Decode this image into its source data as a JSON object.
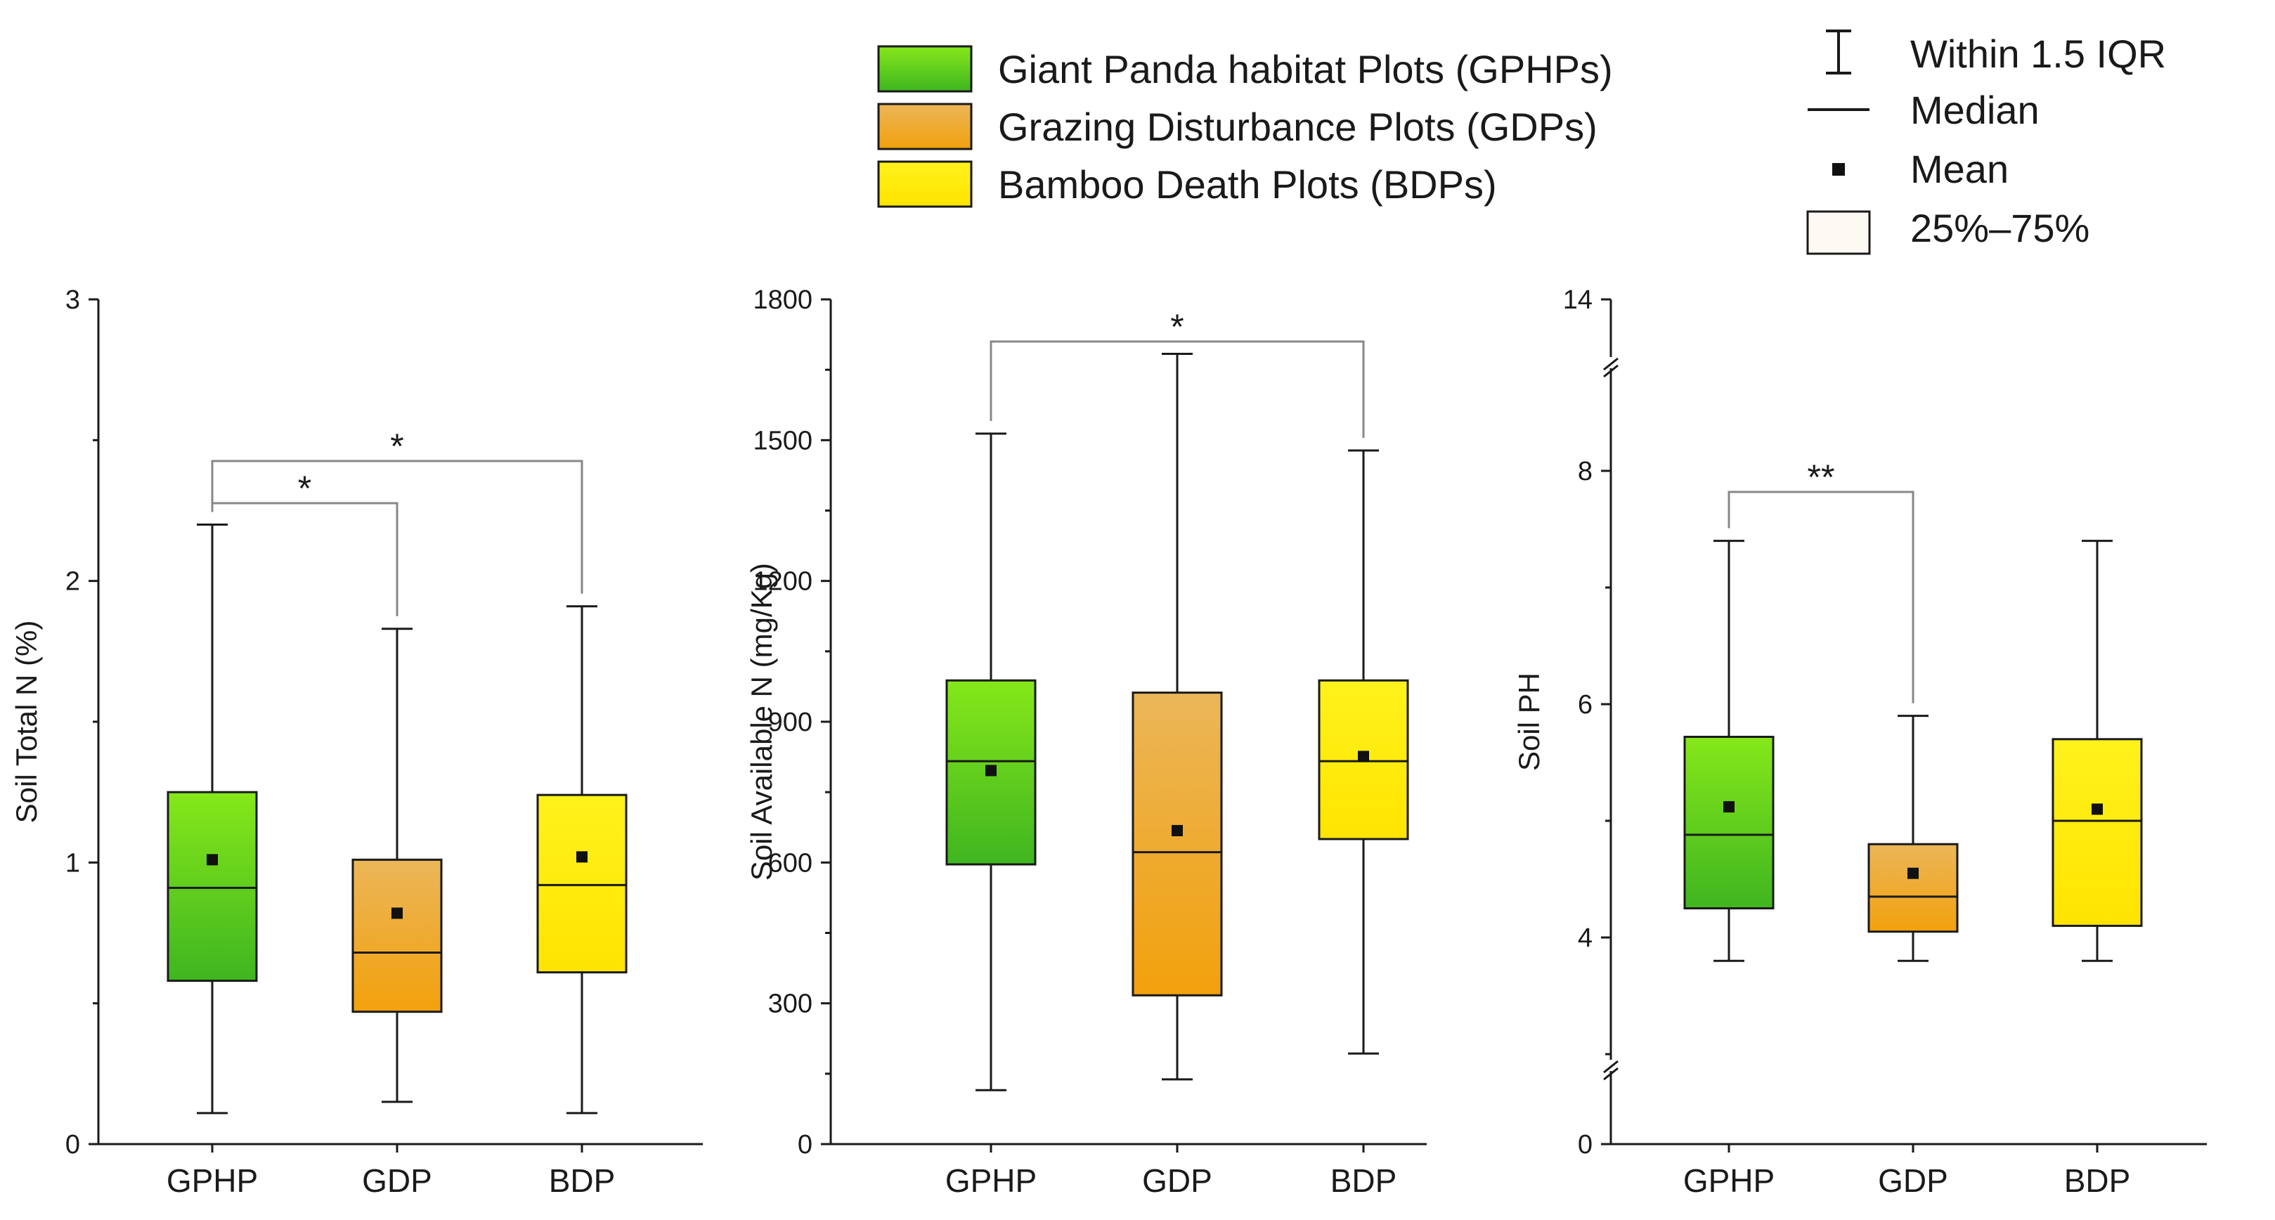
{
  "colors": {
    "GPHP": [
      "#86e81a",
      "#3fb520"
    ],
    "GDP": [
      "#ebb659",
      "#f2a10c"
    ],
    "BDP": [
      "#fff21c",
      "#ffe400"
    ],
    "axis": "#1a1a1a",
    "bracket": "#888888"
  },
  "legend_groups": {
    "items": [
      {
        "key": "GPHP",
        "label": "Giant Panda habitat Plots (GPHPs)"
      },
      {
        "key": "GDP",
        "label": "Grazing Disturbance Plots (GDPs)"
      },
      {
        "key": "BDP",
        "label": "Bamboo Death Plots (BDPs)"
      }
    ]
  },
  "legend_symbols": {
    "items": [
      {
        "symbol": "whisker-icon",
        "label": "Within 1.5 IQR"
      },
      {
        "symbol": "median-line-icon",
        "label": "Median"
      },
      {
        "symbol": "mean-dot-icon",
        "label": "Mean"
      },
      {
        "symbol": "iqr-box-icon",
        "label": "25%–75%"
      }
    ]
  },
  "chart_data": [
    {
      "type": "box",
      "ylabel": "Soil Total N (%)",
      "categories": [
        "GPHP",
        "GDP",
        "BDP"
      ],
      "ylim": [
        0,
        3
      ],
      "yticks": [
        0,
        1,
        2,
        3
      ],
      "yticks_minor": [
        0.5,
        1.5,
        2.5
      ],
      "boxes": [
        {
          "group": "GPHP",
          "whisker_low": 0.11,
          "q1": 0.58,
          "median": 0.91,
          "q3": 1.25,
          "whisker_high": 2.2,
          "mean": 1.01
        },
        {
          "group": "GDP",
          "whisker_low": 0.15,
          "q1": 0.47,
          "median": 0.68,
          "q3": 1.01,
          "whisker_high": 1.83,
          "mean": 0.82
        },
        {
          "group": "BDP",
          "whisker_low": 0.11,
          "q1": 0.61,
          "median": 0.92,
          "q3": 1.24,
          "whisker_high": 1.91,
          "mean": 1.02
        }
      ],
      "significance": [
        {
          "from": "GPHP",
          "to": "GDP",
          "label": "*"
        },
        {
          "from": "GPHP",
          "to": "BDP",
          "label": "*"
        }
      ]
    },
    {
      "type": "box",
      "ylabel": "Soil Available N (mg/Kg)",
      "categories": [
        "GPHP",
        "GDP",
        "BDP"
      ],
      "ylim": [
        0,
        1800
      ],
      "yticks": [
        0,
        300,
        600,
        900,
        1200,
        1500,
        1800
      ],
      "yticks_minor": [
        150,
        450,
        750,
        1050,
        1350,
        1650
      ],
      "boxes": [
        {
          "group": "GPHP",
          "whisker_low": 115,
          "q1": 596,
          "median": 816,
          "q3": 988,
          "whisker_high": 1514,
          "mean": 796
        },
        {
          "group": "GDP",
          "whisker_low": 138,
          "q1": 317,
          "median": 622,
          "q3": 962,
          "whisker_high": 1684,
          "mean": 668
        },
        {
          "group": "BDP",
          "whisker_low": 193,
          "q1": 650,
          "median": 816,
          "q3": 988,
          "whisker_high": 1478,
          "mean": 826
        }
      ],
      "significance": [
        {
          "from": "GPHP",
          "to": "BDP",
          "label": "*"
        }
      ]
    },
    {
      "type": "box",
      "ylabel": "Soil PH",
      "categories": [
        "GPHP",
        "GDP",
        "BDP"
      ],
      "ylim": [
        0,
        14
      ],
      "axis_break": [
        2.8,
        9
      ],
      "yticks": [
        0,
        4,
        6,
        8,
        14
      ],
      "yticks_minor": [
        3,
        5,
        7
      ],
      "boxes": [
        {
          "group": "GPHP",
          "whisker_low": 3.8,
          "q1": 4.25,
          "median": 4.88,
          "q3": 5.72,
          "whisker_high": 7.4,
          "mean": 5.12
        },
        {
          "group": "GDP",
          "whisker_low": 3.8,
          "q1": 4.05,
          "median": 4.35,
          "q3": 4.8,
          "whisker_high": 5.9,
          "mean": 4.55
        },
        {
          "group": "BDP",
          "whisker_low": 3.8,
          "q1": 4.1,
          "median": 5.0,
          "q3": 5.7,
          "whisker_high": 7.4,
          "mean": 5.1
        }
      ],
      "significance": [
        {
          "from": "GPHP",
          "to": "GDP",
          "label": "**"
        }
      ]
    }
  ]
}
